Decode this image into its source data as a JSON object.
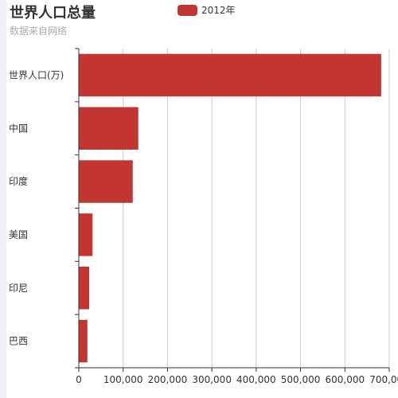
{
  "title": "世界人口总量",
  "subtitle": "数据来自网络",
  "legend": [
    {
      "name": "2012年",
      "color": "#c23531"
    }
  ],
  "chart_data": {
    "type": "bar",
    "orientation": "horizontal",
    "title": "世界人口总量",
    "subtitle": "数据来自网络",
    "categories": [
      "巴西",
      "印尼",
      "美国",
      "印度",
      "中国",
      "世界人口(万)"
    ],
    "series": [
      {
        "name": "2012年",
        "color": "#c23531",
        "values": [
          19325,
          23438,
          31000,
          121594,
          134141,
          681807
        ]
      }
    ],
    "xlim": [
      0,
      700000
    ],
    "x_ticks": [
      0,
      100000,
      200000,
      300000,
      400000,
      500000,
      600000,
      700000
    ],
    "x_tick_labels": [
      "0",
      "100,000",
      "200,000",
      "300,000",
      "400,000",
      "500,000",
      "600,000",
      "700,000"
    ],
    "grid": "vertical",
    "legend_position": "top"
  }
}
